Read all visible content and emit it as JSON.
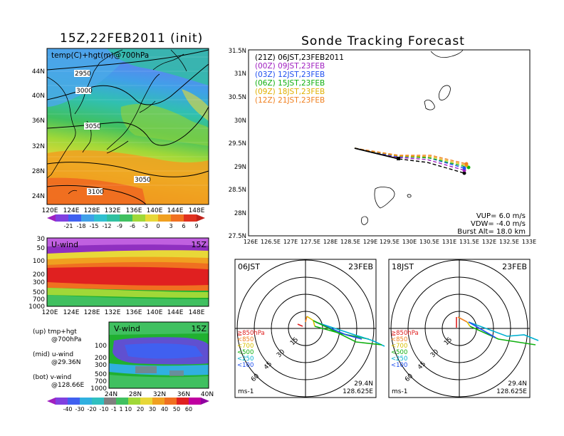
{
  "left": {
    "main_title": "15Z,22FEB2011 (init)",
    "map_label": "temp(C)+hgt(m)@700hPa",
    "contours": [
      "2950",
      "3000",
      "3050",
      "3050",
      "3100"
    ],
    "lat_ticks": [
      "44N",
      "40N",
      "36N",
      "32N",
      "28N",
      "24N"
    ],
    "lon_ticks": [
      "120E",
      "124E",
      "128E",
      "132E",
      "136E",
      "140E",
      "144E",
      "148E"
    ],
    "temp_colorbar": [
      "-21",
      "-18",
      "-15",
      "-12",
      "-9",
      "-6",
      "-3",
      "0",
      "3",
      "6",
      "9"
    ],
    "u_label": "U-wind",
    "u_time": "15Z",
    "v_label": "V-wind",
    "v_time": "15Z",
    "p_ticks_u": [
      "30",
      "50",
      "100",
      "200",
      "300",
      "500",
      "700",
      "1000"
    ],
    "p_ticks_v": [
      "100",
      "200",
      "300",
      "500",
      "700",
      "1000"
    ],
    "v_lat_ticks": [
      "24N",
      "28N",
      "32N",
      "36N",
      "40N"
    ],
    "wind_colorbar": [
      "-40",
      "-30",
      "-20",
      "-10",
      "-1",
      "1",
      "10",
      "20",
      "30",
      "40",
      "50",
      "60"
    ],
    "notes": [
      {
        "a": "(up) tmp+hgt",
        "b": "@700hPa"
      },
      {
        "a": "(mid) u-wind",
        "b": "@29.36N"
      },
      {
        "a": "(bot) v-wind",
        "b": "@128.66E"
      }
    ]
  },
  "track": {
    "title": "Sonde Tracking Forecast",
    "legend": [
      {
        "text": "(21Z) 06JST,23FEB2011",
        "color": "#000000"
      },
      {
        "text": "(00Z) 09JST,23FEB",
        "color": "#a020c0"
      },
      {
        "text": "(03Z) 12JST,23FEB",
        "color": "#2050f0"
      },
      {
        "text": "(06Z) 15JST,23FEB",
        "color": "#10b010"
      },
      {
        "text": "(09Z) 18JST,23FEB",
        "color": "#e0b000"
      },
      {
        "text": "(12Z) 21JST,23FEB",
        "color": "#f08020"
      }
    ],
    "lat_ticks": [
      "31.5N",
      "31N",
      "30.5N",
      "30N",
      "29.5N",
      "29N",
      "28.5N",
      "28N",
      "27.5N"
    ],
    "lon_ticks": [
      "126E",
      "126.5E",
      "127E",
      "127.5E",
      "128E",
      "128.5E",
      "129E",
      "129.5E",
      "130E",
      "130.5E",
      "131E",
      "131.5E",
      "132E",
      "132.5E",
      "133E"
    ],
    "vup": "VUP= 6.0 m/s",
    "vdw": "VDW= -4.0 m/s",
    "burst": "Burst Alt= 18.0 km"
  },
  "hodographs": [
    {
      "time": "06JST",
      "date": "23FEB",
      "lat": "29.4N",
      "lon": "128.625E",
      "unit": "ms-1",
      "rings": [
        "15",
        "30",
        "45",
        "60"
      ],
      "levels": [
        {
          "t": "≧850hPa",
          "c": "#e02020"
        },
        {
          "t": "<850",
          "c": "#f08020"
        },
        {
          "t": "<700",
          "c": "#d8c000"
        },
        {
          "t": "<500",
          "c": "#10b010"
        },
        {
          "t": "<250",
          "c": "#00b0d0"
        },
        {
          "t": "<100",
          "c": "#2050f0"
        }
      ]
    },
    {
      "time": "18JST",
      "date": "23FEB",
      "lat": "29.4N",
      "lon": "128.625E",
      "unit": "ms-1",
      "rings": [
        "15",
        "30",
        "45",
        "60"
      ],
      "levels": [
        {
          "t": "≧850hPa",
          "c": "#e02020"
        },
        {
          "t": "<850",
          "c": "#f08020"
        },
        {
          "t": "<700",
          "c": "#d8c000"
        },
        {
          "t": "<500",
          "c": "#10b010"
        },
        {
          "t": "<250",
          "c": "#00b0d0"
        },
        {
          "t": "<100",
          "c": "#2050f0"
        }
      ]
    }
  ]
}
